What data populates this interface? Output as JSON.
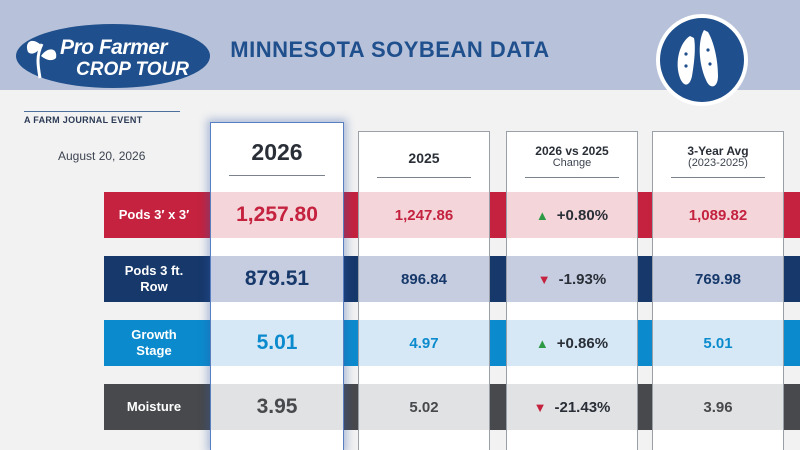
{
  "branding": {
    "logo_line1": "Pro Farmer",
    "logo_line2": "CROP TOUR",
    "tagline": "A FARM JOURNAL EVENT"
  },
  "date": "August 20, 2026",
  "title": "MINNESOTA SOYBEAN DATA",
  "colors": {
    "pods_3x3": "#c4223e",
    "pods_3ft": "#16386a",
    "growth_stage": "#0b8bcd",
    "moisture": "#47494c",
    "up_arrow": "#2f9a45",
    "down_arrow": "#c4223e"
  },
  "columns": [
    {
      "label": "2026",
      "sub": ""
    },
    {
      "label": "2025",
      "sub": ""
    },
    {
      "label": "2026 vs 2025",
      "sub": "Change"
    },
    {
      "label": "3-Year Avg",
      "sub": "(2023-2025)"
    }
  ],
  "rows": [
    {
      "label_line1": "Pods 3′ x 3′",
      "label_line2": "",
      "y2026": "1,257.80",
      "y2025": "1,247.86",
      "change": "+0.80%",
      "direction": "up",
      "avg3": "1,089.82"
    },
    {
      "label_line1": "Pods 3 ft.",
      "label_line2": "Row",
      "y2026": "879.51",
      "y2025": "896.84",
      "change": "-1.93%",
      "direction": "down",
      "avg3": "769.98"
    },
    {
      "label_line1": "Growth",
      "label_line2": "Stage",
      "y2026": "5.01",
      "y2025": "4.97",
      "change": "+0.86%",
      "direction": "up",
      "avg3": "5.01"
    },
    {
      "label_line1": "Moisture",
      "label_line2": "",
      "y2026": "3.95",
      "y2025": "5.02",
      "change": "-21.43%",
      "direction": "down",
      "avg3": "3.96"
    }
  ],
  "icons": {
    "logo": "soybean-sprout-icon",
    "badge": "soybean-pod-icon",
    "up": "triangle-up-icon",
    "down": "triangle-down-icon"
  }
}
